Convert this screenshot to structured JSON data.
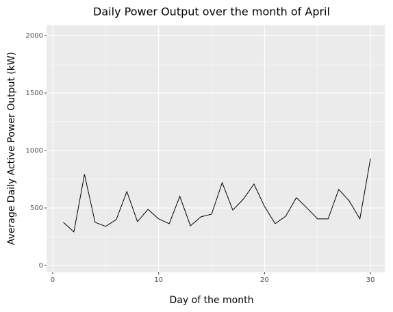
{
  "chart_data": {
    "type": "line",
    "title": "Daily Power Output over the month of April",
    "x_label": "Day of the month",
    "y_label": "Average Daily Active Power Output (kW)",
    "x": [
      1,
      2,
      3,
      4,
      5,
      6,
      7,
      8,
      9,
      10,
      11,
      12,
      13,
      14,
      15,
      16,
      17,
      18,
      19,
      20,
      21,
      22,
      23,
      24,
      25,
      26,
      27,
      28,
      29,
      30
    ],
    "series": [
      {
        "name": "Average Daily Active Power Output (kW)",
        "color": "#000000",
        "values": [
          375,
          292,
          792,
          375,
          340,
          399,
          643,
          381,
          488,
          405,
          363,
          601,
          345,
          423,
          446,
          720,
          482,
          577,
          708,
          512,
          363,
          429,
          589,
          500,
          405,
          405,
          661,
          560,
          405,
          929
        ]
      }
    ],
    "xlim": [
      -0.58,
      31.35
    ],
    "ylim": [
      -60,
      2089
    ],
    "xticks": [
      0,
      10,
      20,
      30
    ],
    "yticks": [
      0,
      500,
      1000,
      1500,
      2000
    ],
    "x_minor_ticks": [
      5,
      15,
      25
    ],
    "y_minor_ticks": [
      250,
      750,
      1250,
      1750
    ],
    "grid": true
  }
}
